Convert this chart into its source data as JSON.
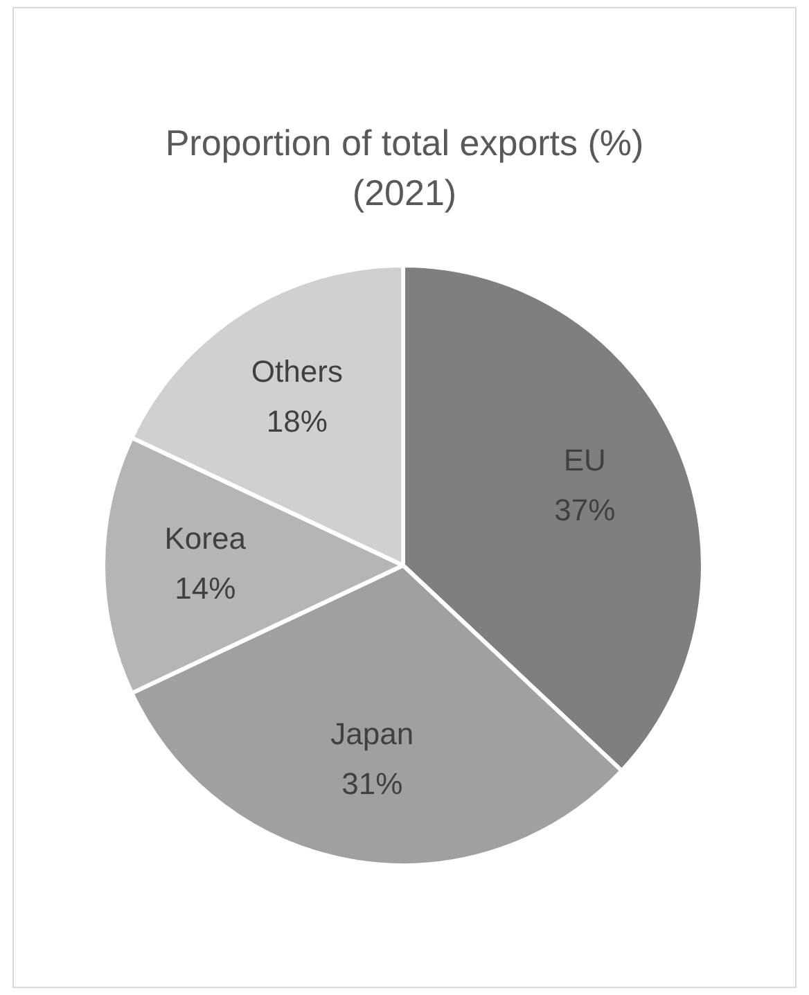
{
  "chart_data": {
    "type": "pie",
    "title": "Proportion of total exports (%)\n(2021)",
    "categories": [
      "EU",
      "Japan",
      "Korea",
      "Others"
    ],
    "values": [
      37,
      31,
      14,
      18
    ],
    "colors": [
      "#7f7f7f",
      "#a0a0a0",
      "#b5b5b5",
      "#d0d0d0"
    ],
    "value_labels": [
      "37%",
      "31%",
      "14%",
      "18%"
    ],
    "legend": false
  }
}
